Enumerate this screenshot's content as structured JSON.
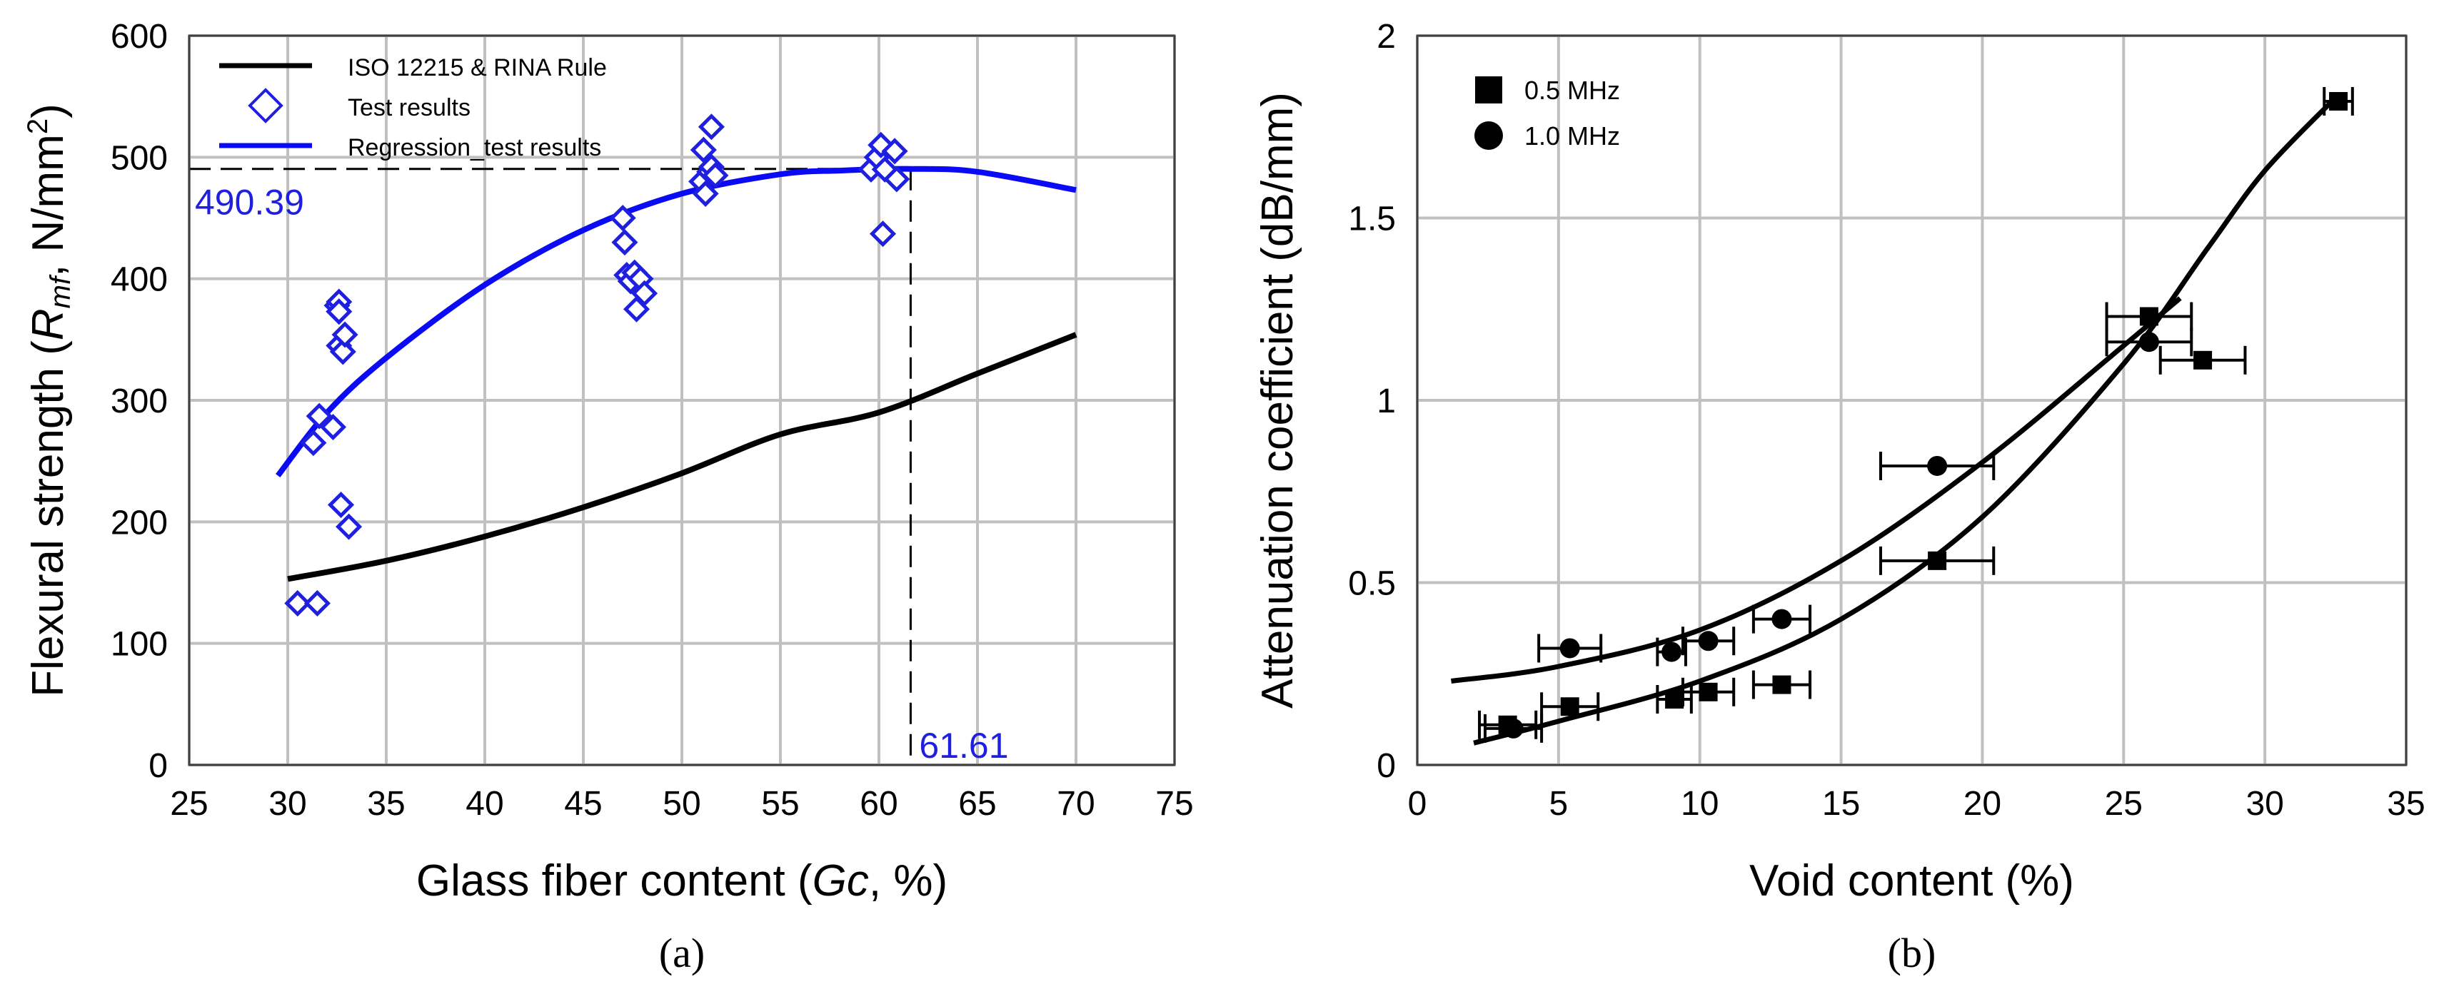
{
  "chart_data": [
    {
      "type": "scatter",
      "panel_label": "(a)",
      "xlabel_pre": "Glass fiber content (",
      "xlabel_italic": "Gc",
      "xlabel_post": ", %)",
      "ylabel_pre": "Flexural strength (",
      "ylabel_italic": "R",
      "ylabel_sub": "mf",
      "ylabel_post": ", N/mm",
      "ylabel_sup": "2",
      "ylabel_close": ")",
      "xlim": [
        25,
        75
      ],
      "ylim": [
        0,
        600
      ],
      "xticks": [
        25,
        30,
        35,
        40,
        45,
        50,
        55,
        60,
        65,
        70,
        75
      ],
      "yticks": [
        0,
        100,
        200,
        300,
        400,
        500,
        600
      ],
      "grid": true,
      "legend_position": "top-left",
      "series": [
        {
          "name": "ISO 12215 & RINA Rule",
          "kind": "line",
          "color": "#000000",
          "x": [
            30,
            35,
            40,
            45,
            50,
            55,
            60,
            65,
            70
          ],
          "y": [
            153,
            168,
            188,
            212,
            240,
            272,
            290,
            322,
            354
          ]
        },
        {
          "name": "Test results",
          "kind": "scatter",
          "marker": "diamond",
          "color": "#1f1fe0",
          "x": [
            30.5,
            31.5,
            31.3,
            31.6,
            32.3,
            32.6,
            32.8,
            32.5,
            32.6,
            32.6,
            32.7,
            33.1,
            32.9,
            47.0,
            47.1,
            47.2,
            47.4,
            47.6,
            47.9,
            48.1,
            47.7,
            51.0,
            51.2,
            51.4,
            51.5,
            51.7,
            51.1,
            51.5,
            59.6,
            59.9,
            60.1,
            60.3,
            60.8,
            60.9,
            60.2
          ],
          "y": [
            133,
            133,
            265,
            287,
            278,
            345,
            340,
            378,
            381,
            373,
            214,
            196,
            354,
            450,
            430,
            403,
            398,
            405,
            400,
            388,
            375,
            480,
            470,
            488,
            492,
            485,
            506,
            525,
            490,
            500,
            510,
            490,
            505,
            482,
            437
          ]
        },
        {
          "name": "Regression_test results",
          "kind": "line",
          "color": "#0a0af5",
          "x": [
            29.5,
            32,
            35,
            40,
            45,
            50,
            55,
            58,
            61.61,
            65,
            70
          ],
          "y": [
            238,
            290,
            335,
            395,
            440,
            470,
            486,
            489,
            490.39,
            488,
            473
          ]
        }
      ],
      "annotations": [
        {
          "text": "490.39",
          "x": 61.61,
          "y": 490.39,
          "color": "#1f1fe0"
        },
        {
          "text": "61.61",
          "x": 61.61,
          "y": 0,
          "color": "#1f1fe0"
        }
      ]
    },
    {
      "type": "scatter",
      "panel_label": "(b)",
      "xlabel": "Void content (%)",
      "ylabel": "Attenuation coefficient (dB/mm)",
      "xlim": [
        0,
        35
      ],
      "ylim": [
        0,
        2
      ],
      "xticks": [
        0,
        5,
        10,
        15,
        20,
        25,
        30,
        35
      ],
      "yticks": [
        0,
        0.5,
        1,
        1.5,
        2
      ],
      "ytick_labels": [
        "0",
        "0.5",
        "1",
        "1.5",
        "2"
      ],
      "grid": true,
      "legend_position": "top-left",
      "series": [
        {
          "name": "0.5 MHz",
          "marker": "square",
          "color": "#000000",
          "x": [
            3.2,
            5.4,
            9.1,
            10.3,
            12.9,
            18.4,
            25.9,
            27.8,
            32.6
          ],
          "y": [
            0.11,
            0.16,
            0.18,
            0.2,
            0.22,
            0.56,
            1.23,
            1.11,
            1.82
          ],
          "xerr": [
            1.0,
            1.0,
            0.6,
            0.9,
            1.0,
            2.0,
            1.5,
            1.5,
            0.5
          ],
          "fit": {
            "x": [
              2,
              5,
              10,
              15,
              20,
              25,
              28,
              30,
              32.5
            ],
            "y": [
              0.06,
              0.12,
              0.23,
              0.4,
              0.68,
              1.1,
              1.42,
              1.63,
              1.83
            ]
          }
        },
        {
          "name": "1.0 MHz",
          "marker": "circle",
          "color": "#000000",
          "x": [
            3.4,
            5.4,
            9.0,
            10.3,
            12.9,
            18.4,
            25.9
          ],
          "y": [
            0.1,
            0.32,
            0.31,
            0.34,
            0.4,
            0.82,
            1.16
          ],
          "xerr": [
            1.0,
            1.1,
            0.5,
            0.9,
            1.0,
            2.0,
            1.5
          ],
          "fit": {
            "x": [
              1.2,
              5,
              10,
              15,
              20,
              25,
              27
            ],
            "y": [
              0.23,
              0.27,
              0.37,
              0.56,
              0.83,
              1.15,
              1.28
            ]
          }
        }
      ]
    }
  ]
}
